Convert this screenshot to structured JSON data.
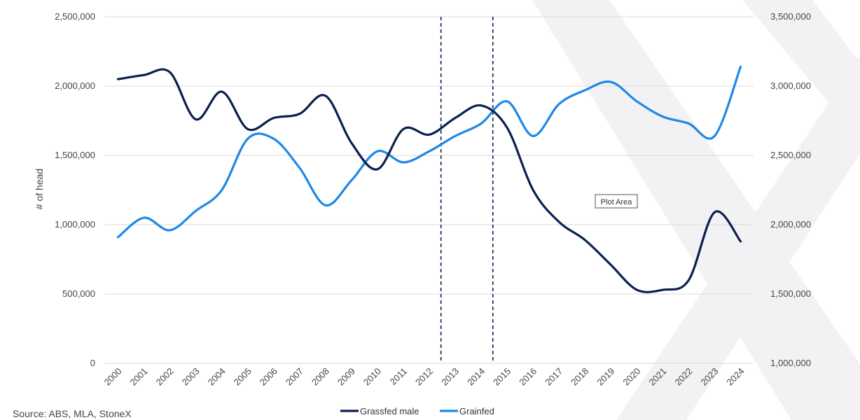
{
  "chart_data": {
    "type": "line",
    "title": "",
    "x": [
      "2000",
      "2001",
      "2002",
      "2003",
      "2004",
      "2005",
      "2006",
      "2007",
      "2008",
      "2009",
      "2010",
      "2011",
      "2012",
      "2013",
      "2014",
      "2015",
      "2016",
      "2017",
      "2018",
      "2019",
      "2020",
      "2021",
      "2022",
      "2023",
      "2024"
    ],
    "series": [
      {
        "name": "Grassfed male",
        "axis": "left",
        "color": "#0b1f4f",
        "values": [
          2050000,
          2080000,
          2100000,
          1760000,
          1960000,
          1690000,
          1770000,
          1800000,
          1930000,
          1590000,
          1400000,
          1690000,
          1650000,
          1770000,
          1860000,
          1700000,
          1250000,
          1020000,
          890000,
          710000,
          530000,
          530000,
          600000,
          1090000,
          880000
        ]
      },
      {
        "name": "Grainfed",
        "axis": "right",
        "color": "#1e88e5",
        "values": [
          1910000,
          2050000,
          1960000,
          2100000,
          2250000,
          2620000,
          2620000,
          2410000,
          2140000,
          2320000,
          2530000,
          2450000,
          2530000,
          2640000,
          2730000,
          2890000,
          2640000,
          2870000,
          2970000,
          3030000,
          2890000,
          2780000,
          2730000,
          2640000,
          3140000
        ]
      }
    ],
    "ylabel": "# of head",
    "y_left": {
      "min": 0,
      "max": 2500000,
      "ticks": [
        0,
        500000,
        1000000,
        1500000,
        2000000,
        2500000
      ]
    },
    "y_right": {
      "min": 1000000,
      "max": 3500000,
      "ticks": [
        1000000,
        1500000,
        2000000,
        2500000,
        3000000,
        3500000
      ]
    },
    "y_left_tick_labels": [
      "0",
      "500,000",
      "1,000,000",
      "1,500,000",
      "2,000,000",
      "2,500,000"
    ],
    "y_right_tick_labels": [
      "1,000,000",
      "1,500,000",
      "2,000,000",
      "2,500,000",
      "3,000,000",
      "3,500,000"
    ],
    "vertical_markers_x": [
      12.45,
      14.45
    ],
    "grid": true,
    "legend": "bottom-center",
    "tooltip": "Plot Area",
    "source": "Source: ABS, MLA, StoneX"
  },
  "colors": {
    "grid": "#d9d9d9",
    "watermark": "#f2f2f4",
    "marker": "#0b1f4f"
  }
}
